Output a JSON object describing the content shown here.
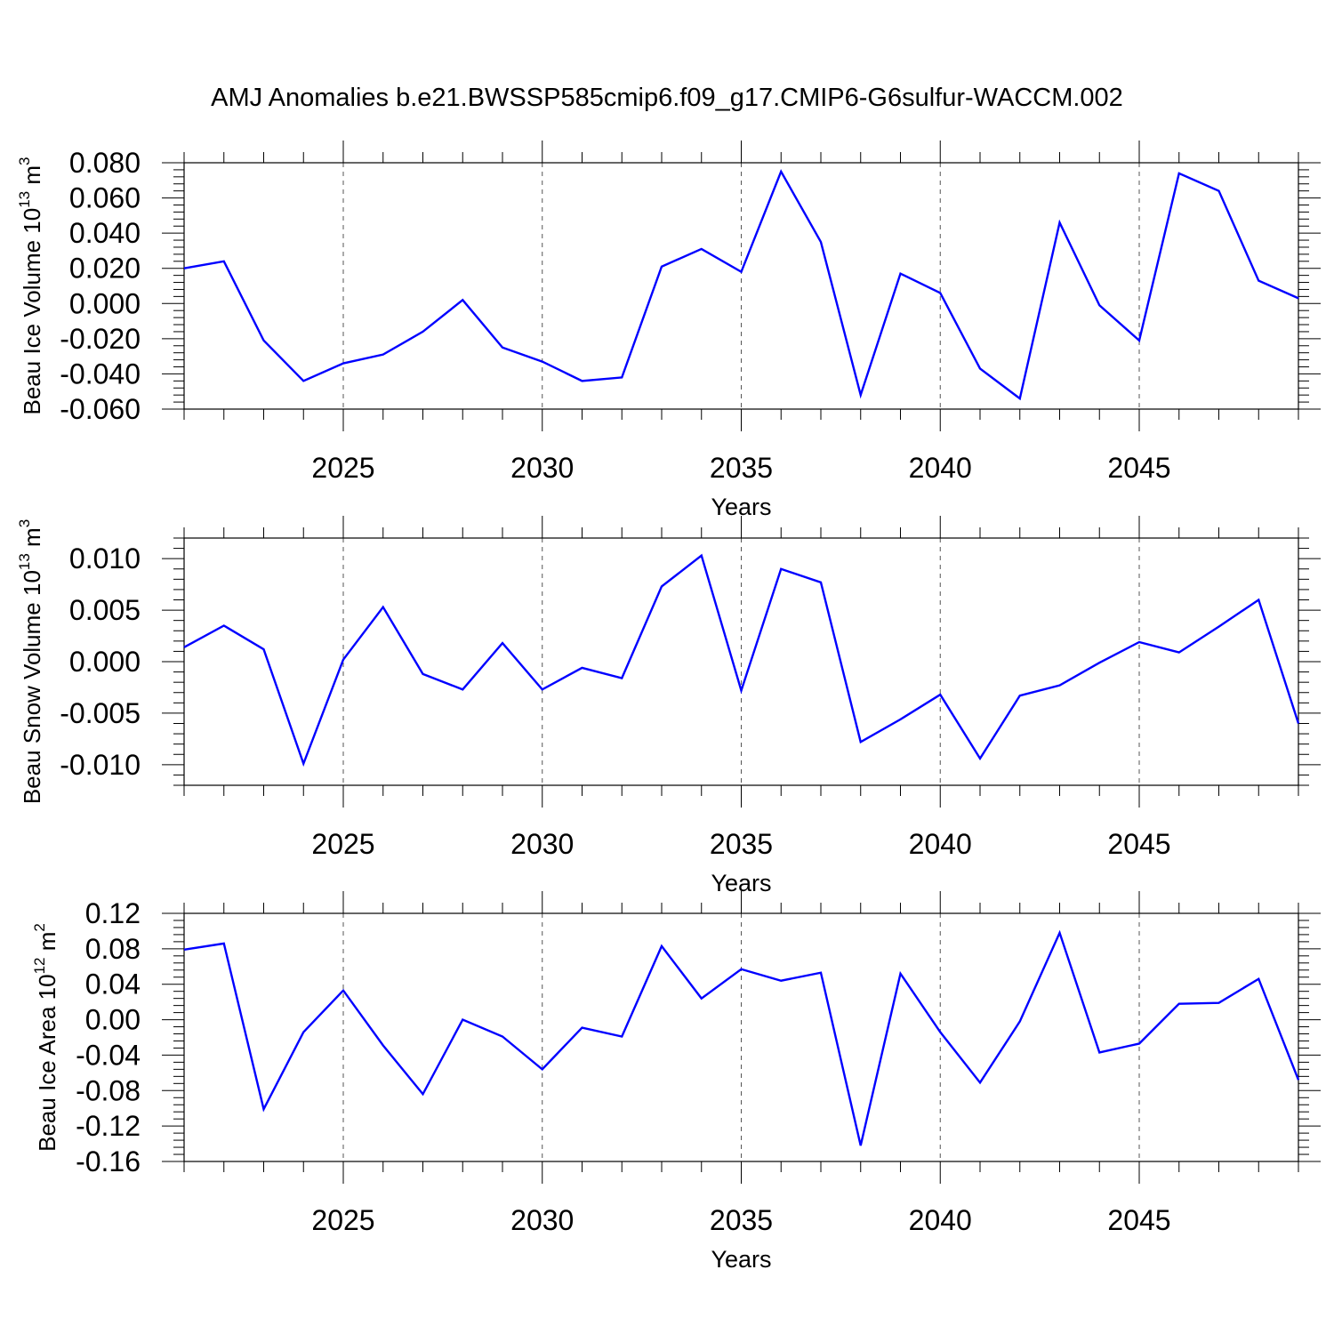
{
  "title": "AMJ Anomalies b.e21.BWSSP585cmip6.f09_g17.CMIP6-G6sulfur-WACCM.002",
  "colors": {
    "line": "#0000ff",
    "axis": "#000000",
    "grid": "#555555",
    "background": "#ffffff"
  },
  "chart_data": [
    {
      "type": "line",
      "title": "AMJ Anomalies b.e21.BWSSP585cmip6.f09_g17.CMIP6-G6sulfur-WACCM.002",
      "ylabel": "Beau Ice Volume",
      "yunit_base": "10",
      "yunit_exp": "13",
      "yunit_symbol": "m",
      "yunit_pow": "3",
      "xlabel": "Years",
      "xlim": [
        2021,
        2049
      ],
      "ylim": [
        -0.06,
        0.08
      ],
      "xticks": [
        2025,
        2030,
        2035,
        2040,
        2045
      ],
      "xtick_labels": [
        "2025",
        "2030",
        "2035",
        "2040",
        "2045"
      ],
      "yticks": [
        -0.06,
        -0.04,
        -0.02,
        0.0,
        0.02,
        0.04,
        0.06,
        0.08
      ],
      "ytick_labels": [
        "-0.060",
        "-0.040",
        "-0.020",
        "0.000",
        "0.020",
        "0.040",
        "0.060",
        "0.080"
      ],
      "x": [
        2021,
        2022,
        2023,
        2024,
        2025,
        2026,
        2027,
        2028,
        2029,
        2030,
        2031,
        2032,
        2033,
        2034,
        2035,
        2036,
        2037,
        2038,
        2039,
        2040,
        2041,
        2042,
        2043,
        2044,
        2045,
        2046,
        2047,
        2048,
        2049
      ],
      "series": [
        {
          "name": "Beau Ice Volume",
          "values": [
            0.02,
            0.024,
            -0.021,
            -0.044,
            -0.034,
            -0.029,
            -0.016,
            0.002,
            -0.025,
            -0.033,
            -0.044,
            -0.042,
            0.021,
            0.031,
            0.018,
            0.075,
            0.035,
            -0.052,
            0.017,
            0.006,
            -0.037,
            -0.054,
            0.046,
            -0.001,
            -0.021,
            0.074,
            0.064,
            0.013,
            0.003
          ]
        }
      ]
    },
    {
      "type": "line",
      "ylabel": "Beau Snow Volume",
      "yunit_base": "10",
      "yunit_exp": "13",
      "yunit_symbol": "m",
      "yunit_pow": "3",
      "xlabel": "Years",
      "xlim": [
        2021,
        2049
      ],
      "ylim": [
        -0.012,
        0.012
      ],
      "xticks": [
        2025,
        2030,
        2035,
        2040,
        2045
      ],
      "xtick_labels": [
        "2025",
        "2030",
        "2035",
        "2040",
        "2045"
      ],
      "yticks": [
        -0.01,
        -0.005,
        0.0,
        0.005,
        0.01
      ],
      "ytick_labels": [
        "-0.010",
        "-0.005",
        "0.000",
        "0.005",
        "0.010"
      ],
      "x": [
        2021,
        2022,
        2023,
        2024,
        2025,
        2026,
        2027,
        2028,
        2029,
        2030,
        2031,
        2032,
        2033,
        2034,
        2035,
        2036,
        2037,
        2038,
        2039,
        2040,
        2041,
        2042,
        2043,
        2044,
        2045,
        2046,
        2047,
        2048,
        2049
      ],
      "series": [
        {
          "name": "Beau Snow Volume",
          "values": [
            0.0014,
            0.0035,
            0.0012,
            -0.0099,
            0.0002,
            0.0053,
            -0.0012,
            -0.0027,
            0.0018,
            -0.0027,
            -0.0006,
            -0.0016,
            0.0073,
            0.0103,
            -0.0028,
            0.009,
            0.0077,
            -0.0078,
            -0.0056,
            -0.0032,
            -0.0094,
            -0.0033,
            -0.0023,
            -0.0001,
            0.0019,
            0.0009,
            0.0034,
            0.006,
            -0.006
          ]
        }
      ]
    },
    {
      "type": "line",
      "ylabel": "Beau Ice Area",
      "yunit_base": "10",
      "yunit_exp": "12",
      "yunit_symbol": "m",
      "yunit_pow": "2",
      "xlabel": "Years",
      "xlim": [
        2021,
        2049
      ],
      "ylim": [
        -0.16,
        0.12
      ],
      "xticks": [
        2025,
        2030,
        2035,
        2040,
        2045
      ],
      "xtick_labels": [
        "2025",
        "2030",
        "2035",
        "2040",
        "2045"
      ],
      "yticks": [
        -0.16,
        -0.12,
        -0.08,
        -0.04,
        0.0,
        0.04,
        0.08,
        0.12
      ],
      "ytick_labels": [
        "-0.16",
        "-0.12",
        "-0.08",
        "-0.04",
        "0.00",
        "0.04",
        "0.08",
        "0.12"
      ],
      "x": [
        2021,
        2022,
        2023,
        2024,
        2025,
        2026,
        2027,
        2028,
        2029,
        2030,
        2031,
        2032,
        2033,
        2034,
        2035,
        2036,
        2037,
        2038,
        2039,
        2040,
        2041,
        2042,
        2043,
        2044,
        2045,
        2046,
        2047,
        2048,
        2049
      ],
      "series": [
        {
          "name": "Beau Ice Area",
          "values": [
            0.079,
            0.086,
            -0.101,
            -0.014,
            0.033,
            -0.029,
            -0.084,
            0.0,
            -0.019,
            -0.056,
            -0.009,
            -0.019,
            0.083,
            0.024,
            0.057,
            0.044,
            0.053,
            -0.142,
            0.052,
            -0.014,
            -0.071,
            -0.002,
            0.098,
            -0.037,
            -0.027,
            0.018,
            0.019,
            0.046,
            -0.068
          ]
        }
      ]
    }
  ]
}
